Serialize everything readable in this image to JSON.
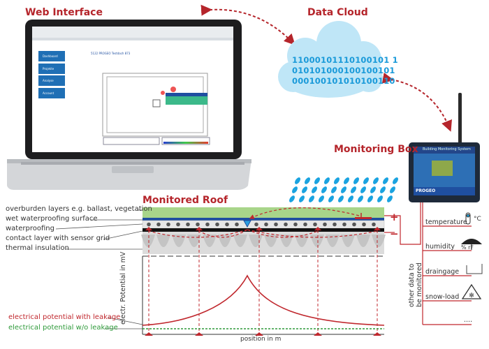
{
  "titles": {
    "web_interface": "Web Interface",
    "data_cloud": "Data Cloud",
    "monitoring_box": "Monitoring Box",
    "monitored_roof": "Monitored Roof"
  },
  "cloud": {
    "binary": [
      "11000101110100101 1",
      "010101000100100101",
      "000100101010100110"
    ]
  },
  "web_app": {
    "nav": [
      "Dashboard",
      "Projekte",
      "Analyse",
      "Account"
    ],
    "page_title": "5122 PROGEO Testdach 873"
  },
  "box": {
    "screen_title": "Building Monitoring System",
    "brand": "PROGEO"
  },
  "roof_layers": [
    "overburden layers e.g. ballast, vegetation",
    "wet waterproofing surface",
    "waterproofing",
    "contact layer with sensor grid",
    "thermal insulation"
  ],
  "polarity": {
    "plus": "+",
    "minus": "−"
  },
  "chart_data": {
    "type": "line",
    "xlabel": "position in m",
    "ylabel": "electr. Potential in mV",
    "series": [
      {
        "name": "electrical potential with leakage",
        "color": "#c0272d"
      },
      {
        "name": "electrical potential w/o leakage",
        "color": "#2e9a3a"
      }
    ]
  },
  "monitored_data": {
    "group_label": "other data to be monitored",
    "items": [
      {
        "label": "temperature",
        "icon": "thermometer-icon",
        "unit": "°C"
      },
      {
        "label": "humidity",
        "icon": "umbrella-icon",
        "unit": "% rF"
      },
      {
        "label": "draingage",
        "icon": "rain-gauge-icon",
        "unit": ""
      },
      {
        "label": "snow-load",
        "icon": "snow-warning-icon",
        "unit": ""
      },
      {
        "label": "....",
        "icon": "",
        "unit": ""
      }
    ]
  },
  "colors": {
    "accent_red": "#b5252b",
    "cloud": "#bfe6f7",
    "binary": "#1a9ad9",
    "vegetation": "#a8d58a",
    "waterproofing": "#1f4fa0"
  }
}
